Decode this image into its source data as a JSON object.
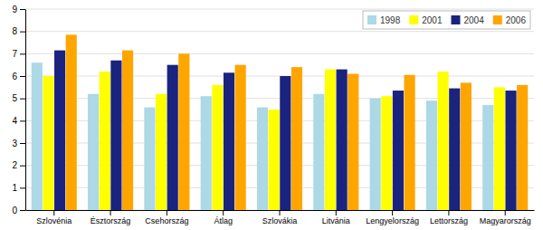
{
  "chart_data": {
    "type": "bar",
    "categories": [
      "Szlovénia",
      "Észtország",
      "Csehország",
      "Átlag",
      "Szlovákia",
      "Litvánia",
      "Lengyelország",
      "Lettország",
      "Magyarország"
    ],
    "series": [
      {
        "name": "1998",
        "color": "#add8e6",
        "values": [
          6.6,
          5.2,
          4.6,
          5.1,
          4.6,
          5.2,
          5.0,
          4.9,
          4.7
        ]
      },
      {
        "name": "2001",
        "color": "#ffff00",
        "values": [
          6.0,
          6.2,
          5.2,
          5.6,
          4.5,
          6.3,
          5.1,
          6.2,
          5.5
        ]
      },
      {
        "name": "2004",
        "color": "#1a237e",
        "values": [
          7.15,
          6.7,
          6.5,
          6.15,
          6.0,
          6.3,
          5.35,
          5.45,
          5.35
        ]
      },
      {
        "name": "2006",
        "color": "#ffa500",
        "values": [
          7.85,
          7.15,
          7.0,
          6.5,
          6.4,
          6.1,
          6.05,
          5.7,
          5.6
        ]
      }
    ],
    "ylim": [
      0,
      9
    ],
    "yticks": [
      0,
      1,
      2,
      3,
      4,
      5,
      6,
      7,
      8,
      9
    ],
    "grid": true,
    "legend": "upper right"
  }
}
